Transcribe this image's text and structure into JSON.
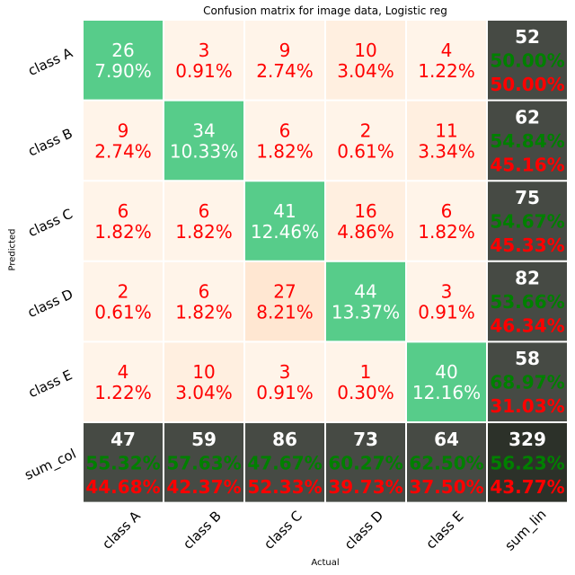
{
  "chart_data": {
    "type": "heatmap",
    "title": "Confusion matrix for image data, Logistic reg",
    "xlabel": "Actual",
    "ylabel": "Predicted",
    "x_tick_labels": [
      "class A",
      "class B",
      "class C",
      "class D",
      "class E",
      "sum_lin"
    ],
    "y_tick_labels": [
      "class A",
      "class B",
      "class C",
      "class D",
      "class E",
      "sum_col"
    ],
    "matrix": [
      {
        "counts": [
          26,
          3,
          9,
          10,
          4
        ],
        "percents": [
          "7.90%",
          "0.91%",
          "2.74%",
          "3.04%",
          "1.22%"
        ]
      },
      {
        "counts": [
          9,
          34,
          6,
          2,
          11
        ],
        "percents": [
          "2.74%",
          "10.33%",
          "1.82%",
          "0.61%",
          "3.34%"
        ]
      },
      {
        "counts": [
          6,
          6,
          41,
          16,
          6
        ],
        "percents": [
          "1.82%",
          "1.82%",
          "12.46%",
          "4.86%",
          "1.82%"
        ]
      },
      {
        "counts": [
          2,
          6,
          27,
          44,
          3
        ],
        "percents": [
          "0.61%",
          "1.82%",
          "8.21%",
          "13.37%",
          "0.91%"
        ]
      },
      {
        "counts": [
          4,
          10,
          3,
          1,
          40
        ],
        "percents": [
          "1.22%",
          "3.04%",
          "0.91%",
          "0.30%",
          "12.16%"
        ]
      }
    ],
    "row_sums": [
      {
        "total": "52",
        "correct": "50.00%",
        "error": "50.00%"
      },
      {
        "total": "62",
        "correct": "54.84%",
        "error": "45.16%"
      },
      {
        "total": "75",
        "correct": "54.67%",
        "error": "45.33%"
      },
      {
        "total": "82",
        "correct": "53.66%",
        "error": "46.34%"
      },
      {
        "total": "58",
        "correct": "68.97%",
        "error": "31.03%"
      }
    ],
    "col_sums": [
      {
        "total": "47",
        "correct": "55.32%",
        "error": "44.68%"
      },
      {
        "total": "59",
        "correct": "57.63%",
        "error": "42.37%"
      },
      {
        "total": "86",
        "correct": "47.67%",
        "error": "52.33%"
      },
      {
        "total": "73",
        "correct": "60.27%",
        "error": "39.73%"
      },
      {
        "total": "64",
        "correct": "62.50%",
        "error": "37.50%"
      }
    ],
    "grand_total": {
      "total": "329",
      "correct": "56.23%",
      "error": "43.77%"
    },
    "colors": {
      "diagonal": "#57cc8a",
      "off_diagonal_light": "#fff4e9",
      "off_diagonal_mid": "#ffefe0",
      "off_diagonal_dark": "#ffe7d2",
      "sum_cell": "#464a44",
      "grand_total_cell": "#2c3129",
      "error_text": "#ff0000",
      "correct_text": "#008000",
      "total_text": "#ffffff",
      "grid_line": "#ffffff"
    }
  }
}
